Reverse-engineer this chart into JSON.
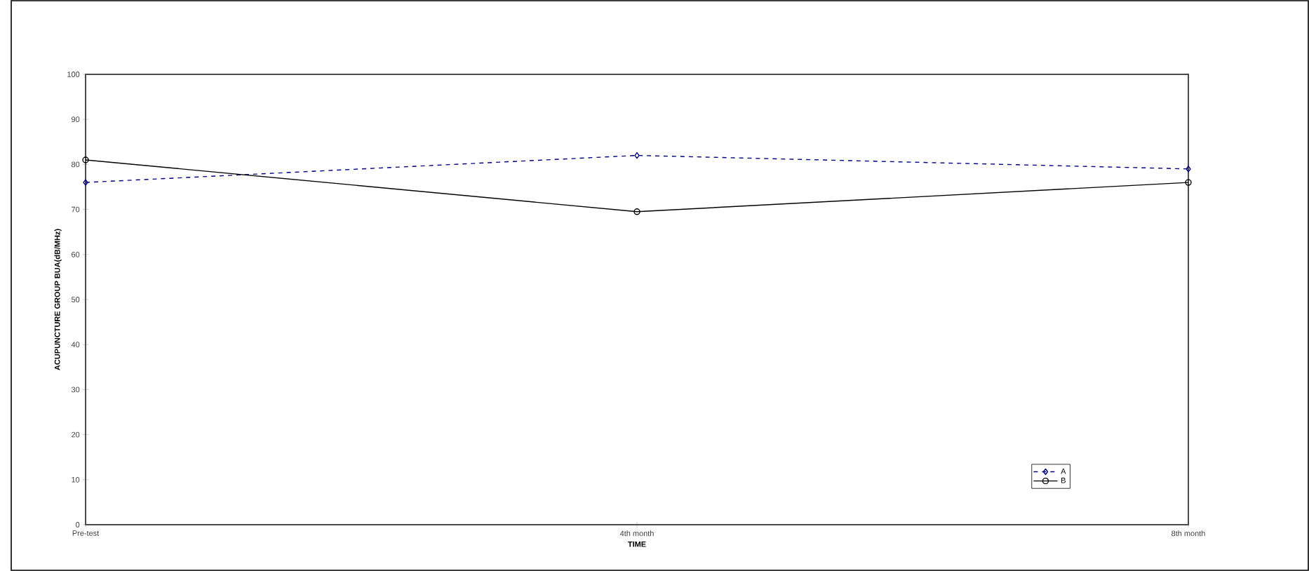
{
  "chart_data": {
    "type": "line",
    "xlabel": "TIME",
    "ylabel": "ACUPUNCTURE GROUP BUA(dB/MHz)",
    "categories": [
      "Pre-test",
      "4th month",
      "8th month"
    ],
    "series": [
      {
        "name": "A",
        "color": "#000080",
        "values": [
          76,
          82,
          79
        ],
        "marker": "diamond",
        "line_style": "dashed"
      },
      {
        "name": "B",
        "color": "#000000",
        "values": [
          81,
          69.5,
          76
        ],
        "marker": "circle",
        "line_style": "solid"
      }
    ],
    "ylim": [
      0,
      100
    ],
    "yticks": [
      0,
      10,
      20,
      30,
      40,
      50,
      60,
      70,
      80,
      90,
      100
    ],
    "grid": false,
    "legend": "bottom right"
  }
}
